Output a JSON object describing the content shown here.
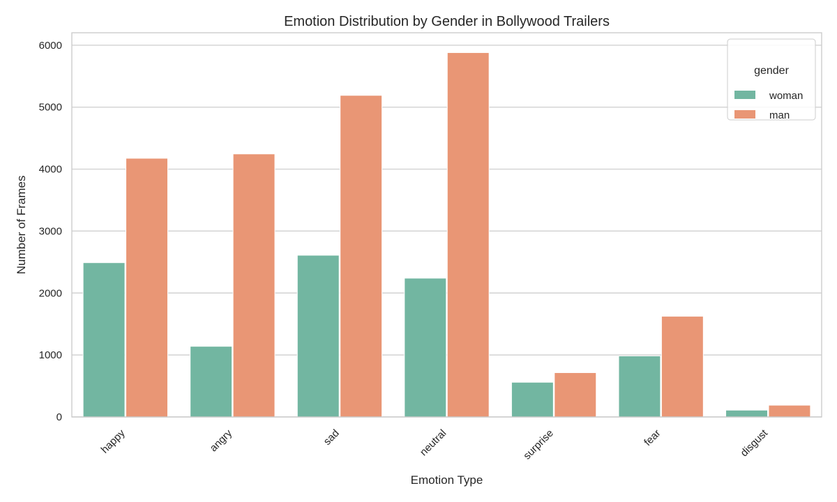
{
  "chart_data": {
    "type": "bar",
    "title": "Emotion Distribution by Gender in Bollywood Trailers",
    "xlabel": "Emotion Type",
    "ylabel": "Number of Frames",
    "categories": [
      "happy",
      "angry",
      "sad",
      "neutral",
      "surprise",
      "fear",
      "disgust"
    ],
    "series": [
      {
        "name": "woman",
        "color": "#72b6a1",
        "values": [
          2490,
          1140,
          2610,
          2240,
          560,
          985,
          110
        ]
      },
      {
        "name": "man",
        "color": "#e99675",
        "values": [
          4175,
          4245,
          5190,
          5880,
          715,
          1625,
          190
        ]
      }
    ],
    "ylim": [
      0,
      6200
    ],
    "yticks": [
      0,
      1000,
      2000,
      3000,
      4000,
      5000,
      6000
    ],
    "grid": true,
    "legend": {
      "title": "gender",
      "position": "top-right"
    }
  }
}
